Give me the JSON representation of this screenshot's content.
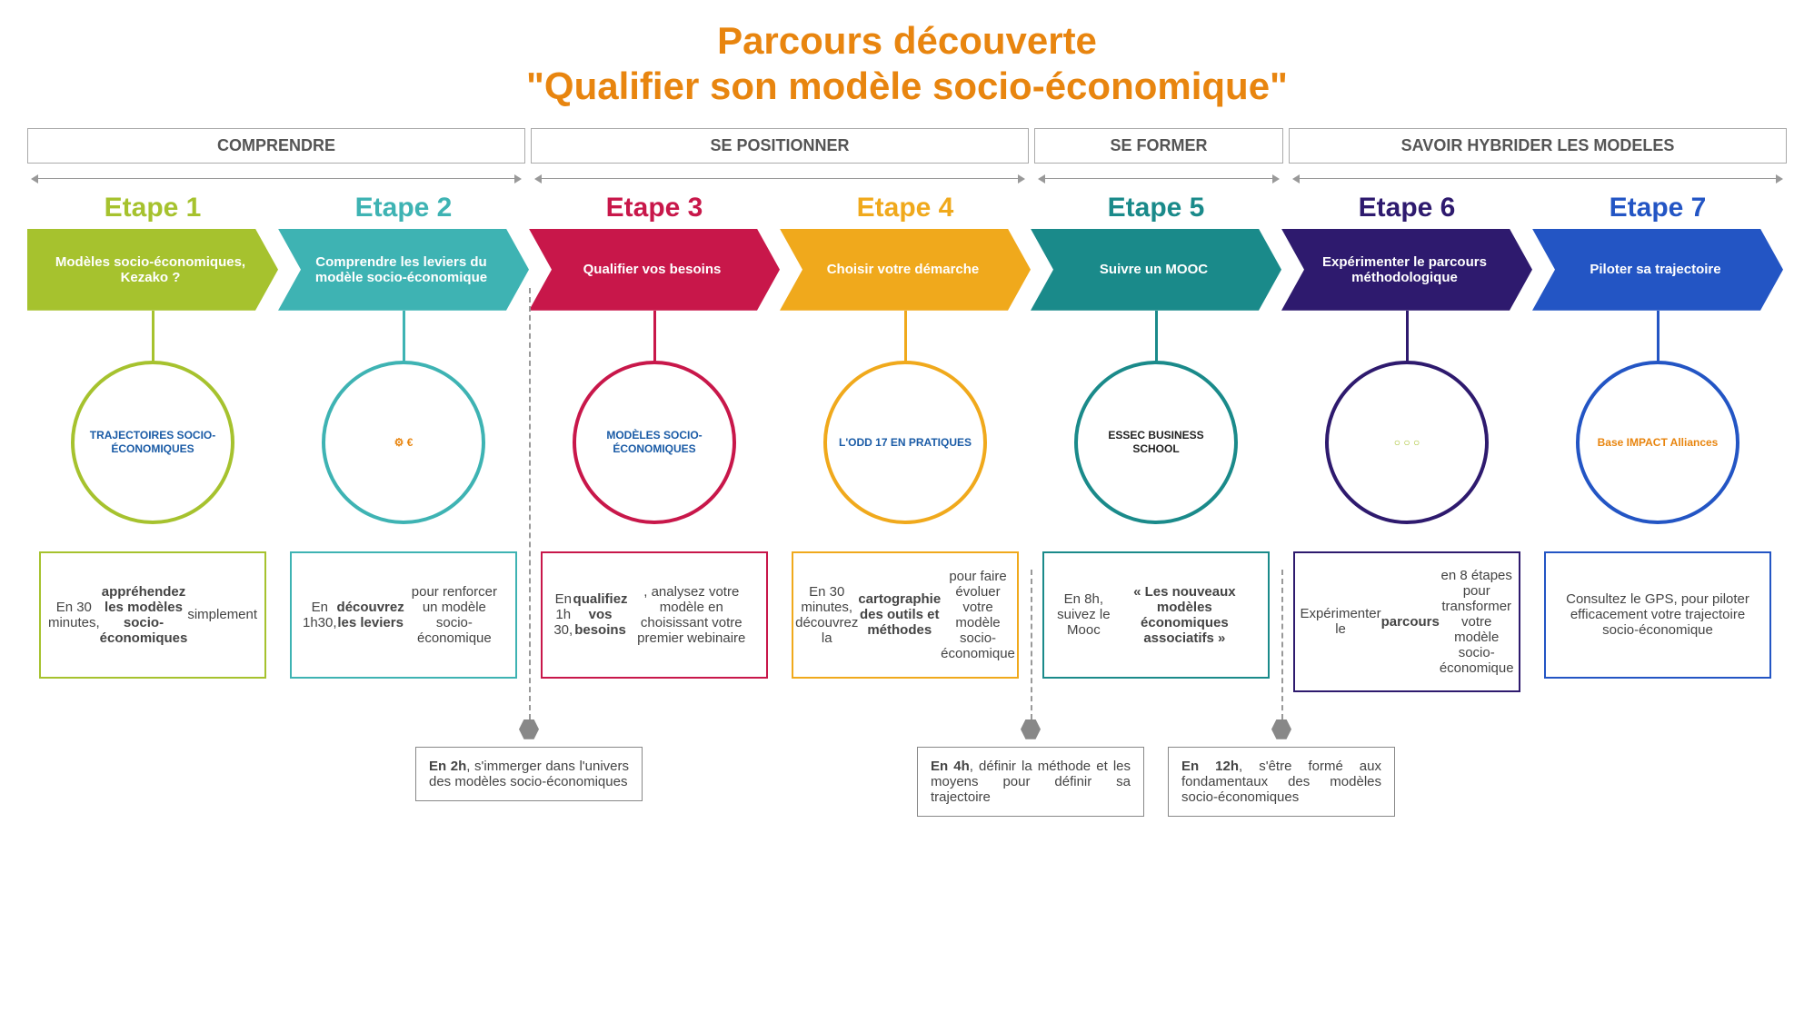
{
  "title_line1": "Parcours découverte",
  "title_line2": "\"Qualifier son modèle socio-économique\"",
  "title_color": "#e8850f",
  "categories": [
    {
      "label": "COMPRENDRE",
      "span": 2
    },
    {
      "label": "SE POSITIONNER",
      "span": 2
    },
    {
      "label": "SE FORMER",
      "span": 1
    },
    {
      "label": "SAVOIR HYBRIDER LES MODELES",
      "span": 2
    }
  ],
  "step_width": 276,
  "steps": [
    {
      "label": "Etape 1",
      "color": "#a6c22e",
      "chevron_text": "Modèles socio-économiques, Kezako ?",
      "icon_text": "TRAJECTOIRES SOCIO-ÉCONOMIQUES",
      "icon_color": "#1a5ba6",
      "desc_html": "En 30 minutes, <b>appréhendez les modèles socio-économiques</b> simplement"
    },
    {
      "label": "Etape 2",
      "color": "#3eb3b3",
      "chevron_text": "Comprendre les leviers du modèle socio-économique",
      "icon_text": "⚙ €",
      "icon_color": "#e8850f",
      "desc_html": "En 1h30, <b>découvrez les leviers</b> pour renforcer un modèle socio-économique"
    },
    {
      "label": "Etape 3",
      "color": "#c8174a",
      "chevron_text": "Qualifier vos besoins",
      "icon_text": "MODÈLES SOCIO-ÉCONOMIQUES",
      "icon_color": "#1a5ba6",
      "desc_html": "En 1h 30, <b>qualifiez vos besoins</b>, analysez votre modèle en choisissant votre premier webinaire"
    },
    {
      "label": "Etape 4",
      "color": "#f0a91c",
      "chevron_text": "Choisir votre démarche",
      "icon_text": "L'ODD 17 EN PRATIQUES",
      "icon_color": "#1a5ba6",
      "desc_html": "En 30 minutes, découvrez la <b>cartographie des outils et méthodes</b> pour faire évoluer votre modèle socio-économique"
    },
    {
      "label": "Etape 5",
      "color": "#1a8a8a",
      "chevron_text": "Suivre un MOOC",
      "icon_text": "ESSEC BUSINESS SCHOOL",
      "icon_color": "#222",
      "desc_html": "En 8h, suivez le Mooc <b>« Les nouveaux modèles économiques associatifs »</b>"
    },
    {
      "label": "Etape 6",
      "color": "#2e1a6e",
      "chevron_text": "Expérimenter le parcours méthodologique",
      "icon_text": "○ ○ ○",
      "icon_color": "#a6c22e",
      "desc_html": "Expérimenter le <b>parcours</b> en 8 étapes pour transformer votre modèle socio-économique"
    },
    {
      "label": "Etape 7",
      "color": "#2355c4",
      "chevron_text": "Piloter sa trajectoire",
      "icon_text": "Base IMPACT Alliances",
      "icon_color": "#e8850f",
      "desc_html": "Consultez le GPS, pour piloter efficacement votre trajectoire socio-économique"
    }
  ],
  "milestones": [
    {
      "after_step": 2,
      "dash_height": 475,
      "html": "<b>En 2h</b>, s'immerger dans l'univers des modèles socio-économiques"
    },
    {
      "after_step": 4,
      "dash_height": 165,
      "html": "<b>En 4h</b>, définir la méthode et les moyens pour définir sa trajectoire"
    },
    {
      "after_step": 5,
      "dash_height": 165,
      "html": "<b>En 12h</b>, s'être formé aux fondamentaux des modèles socio-économiques"
    }
  ]
}
